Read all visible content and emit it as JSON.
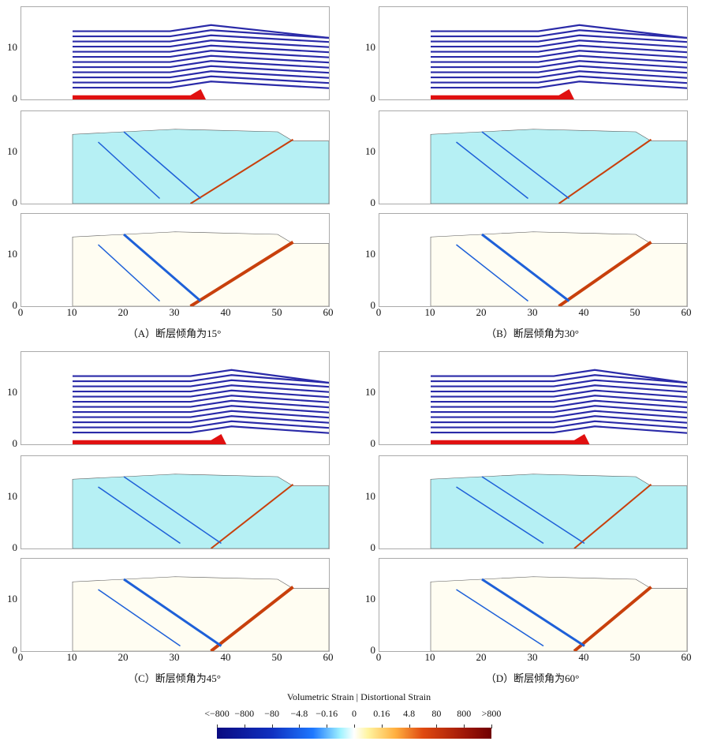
{
  "figure": {
    "panels": [
      {
        "id": "A",
        "caption": "（A）断层倾角为15°",
        "fault_angle": 15
      },
      {
        "id": "B",
        "caption": "（B）断层倾角为30°",
        "fault_angle": 30
      },
      {
        "id": "C",
        "caption": "（C）断层倾角为45°",
        "fault_angle": 45
      },
      {
        "id": "D",
        "caption": "（D）断层倾角为60°",
        "fault_angle": 60
      }
    ],
    "x_ticks": [
      "0",
      "10",
      "20",
      "30",
      "40",
      "50",
      "60"
    ],
    "y_ticks": [
      "0",
      "10"
    ],
    "rows": [
      "layers",
      "volumetric-strain",
      "distortional-strain"
    ]
  },
  "colorbar": {
    "title": "Volumetric Strain | Distortional Strain",
    "labels": [
      "<−800",
      "−800",
      "−80",
      "−4.8",
      "−0.16",
      "0",
      "0.16",
      "4.8",
      "80",
      "800",
      ">800"
    ]
  },
  "colors": {
    "layer": "#2a2aa8",
    "basement": "#e01010",
    "cold": "#8fe8f0",
    "hot": "#c8400c"
  }
}
